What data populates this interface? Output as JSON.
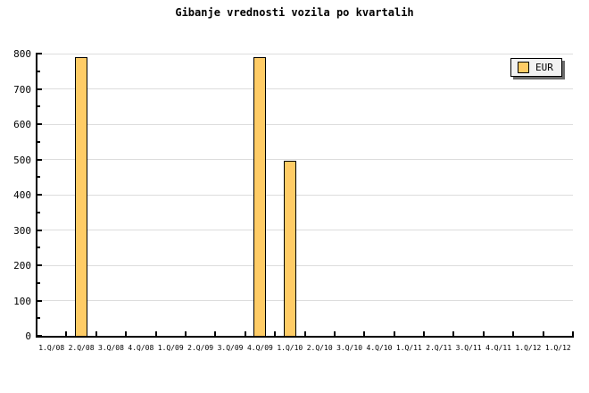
{
  "title": "Gibanje vrednosti vozila po kvartalih",
  "legend": {
    "label": "EUR",
    "swatch_color": "#FFCC66",
    "background": "#F2F2F2",
    "shadow_color": "#6B6B6B"
  },
  "chart_data": {
    "type": "bar",
    "title": "Gibanje vrednosti vozila po kvartalih",
    "categories": [
      "1.Q/08",
      "2.Q/08",
      "3.Q/08",
      "4.Q/08",
      "1.Q/09",
      "2.Q/09",
      "3.Q/09",
      "4.Q/09",
      "1.Q/10",
      "2.Q/10",
      "3.Q/10",
      "4.Q/10",
      "1.Q/11",
      "2.Q/11",
      "3.Q/11",
      "4.Q/11",
      "1.Q/12",
      "1.Q/12"
    ],
    "series": [
      {
        "name": "EUR",
        "values": [
          0,
          790,
          0,
          0,
          0,
          0,
          0,
          790,
          495,
          0,
          0,
          0,
          0,
          0,
          0,
          0,
          0,
          0
        ]
      }
    ],
    "xlabel": "",
    "ylabel": "",
    "ylim": [
      0,
      800
    ],
    "ytick_major": 100,
    "ytick_minor": 50,
    "y_tick_labels": [
      "0",
      "100",
      "200",
      "300",
      "400",
      "500",
      "600",
      "700",
      "800"
    ],
    "grid": "horizontal-major",
    "legend_position": "top-right",
    "colors": {
      "bar_fill": "#FFCC66",
      "bar_border": "#000000",
      "grid": "#DDDDDD",
      "axis": "#000000",
      "background": "#FFFFFF"
    }
  }
}
